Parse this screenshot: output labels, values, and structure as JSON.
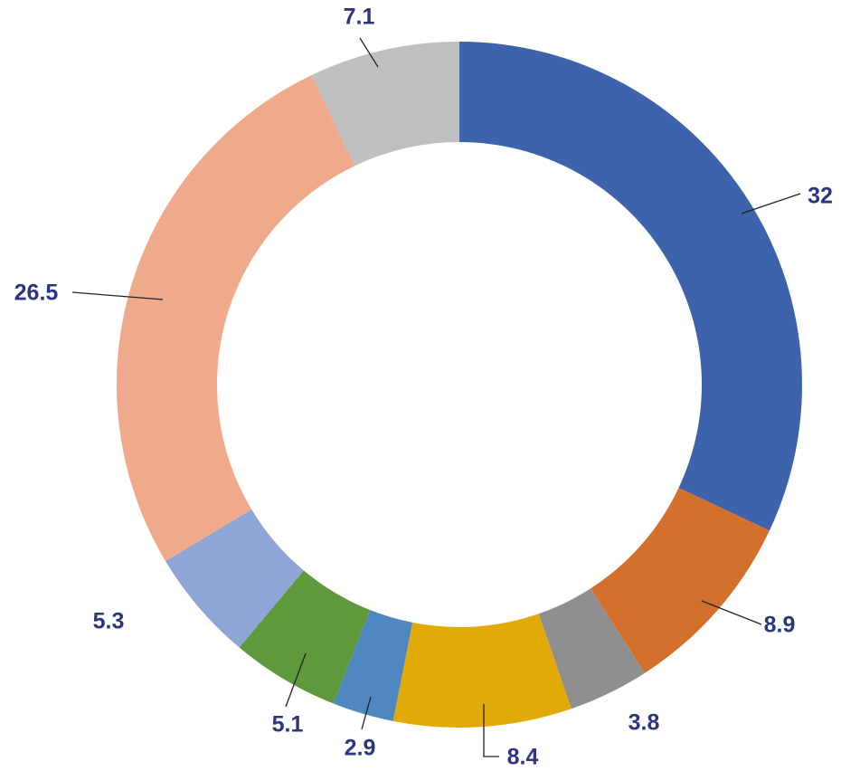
{
  "chart_data": {
    "type": "pie",
    "donut": true,
    "values": [
      32,
      8.9,
      3.8,
      8.4,
      2.9,
      5.1,
      5.3,
      26.5,
      7.1
    ],
    "colors": [
      "#3c63ab",
      "#d3702c",
      "#8f8f8f",
      "#e2aa06",
      "#4f87c0",
      "#5e9a3c",
      "#8fa5d6",
      "#efa98b",
      "#bfbfbf"
    ]
  }
}
